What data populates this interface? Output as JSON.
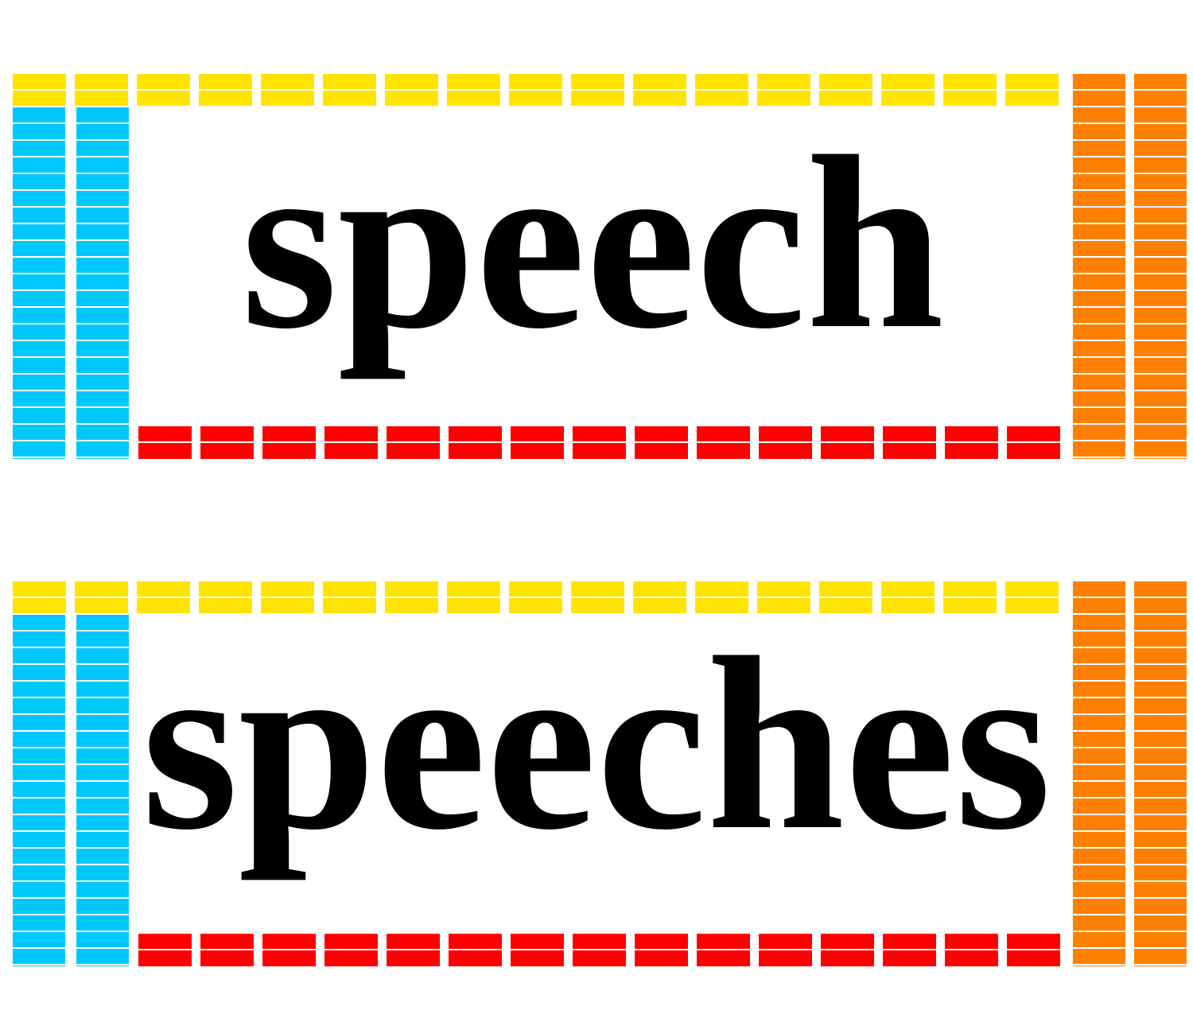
{
  "cards": [
    {
      "word": "speech"
    },
    {
      "word": "speeches"
    }
  ]
}
